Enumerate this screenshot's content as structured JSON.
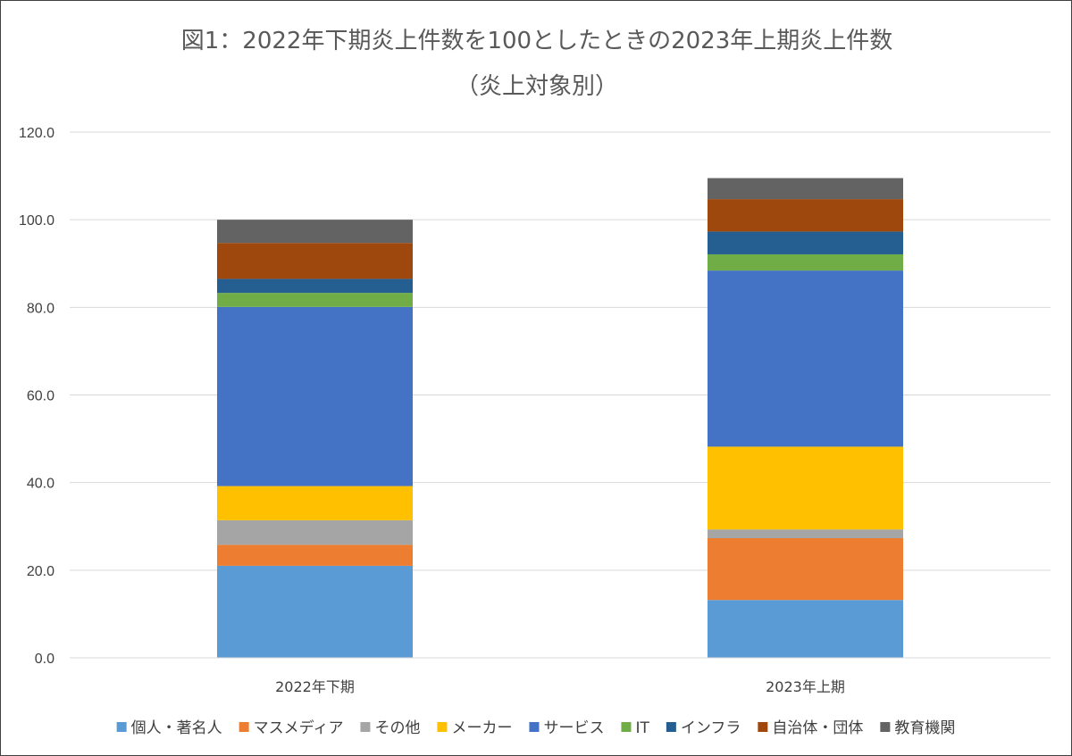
{
  "chart_data": {
    "type": "bar",
    "stacked": true,
    "title": "図1：2022年下期炎上件数を100としたときの2023年上期炎上件数",
    "subtitle": "（炎上対象別）",
    "xlabel": "",
    "ylabel": "",
    "ylim": [
      0,
      120
    ],
    "yticks": [
      "0.0",
      "20.0",
      "40.0",
      "60.0",
      "80.0",
      "100.0",
      "120.0"
    ],
    "grid": true,
    "legend_position": "bottom",
    "categories": [
      "2022年下期",
      "2023年上期"
    ],
    "series": [
      {
        "name": "個人・著名人",
        "color": "#5b9bd5",
        "values": [
          21.0,
          13.2
        ]
      },
      {
        "name": "マスメディア",
        "color": "#ed7d31",
        "values": [
          4.8,
          14.1
        ]
      },
      {
        "name": "その他",
        "color": "#a5a5a5",
        "values": [
          5.6,
          2.0
        ]
      },
      {
        "name": "メーカー",
        "color": "#ffc000",
        "values": [
          7.8,
          18.9
        ]
      },
      {
        "name": "サービス",
        "color": "#4472c4",
        "values": [
          40.9,
          40.2
        ]
      },
      {
        "name": "IT",
        "color": "#70ad47",
        "values": [
          3.2,
          3.7
        ]
      },
      {
        "name": "インフラ",
        "color": "#255e91",
        "values": [
          3.2,
          5.2
        ]
      },
      {
        "name": "自治体・団体",
        "color": "#9e480e",
        "values": [
          8.2,
          7.4
        ]
      },
      {
        "name": "教育機関",
        "color": "#636363",
        "values": [
          5.3,
          4.8
        ]
      }
    ]
  }
}
